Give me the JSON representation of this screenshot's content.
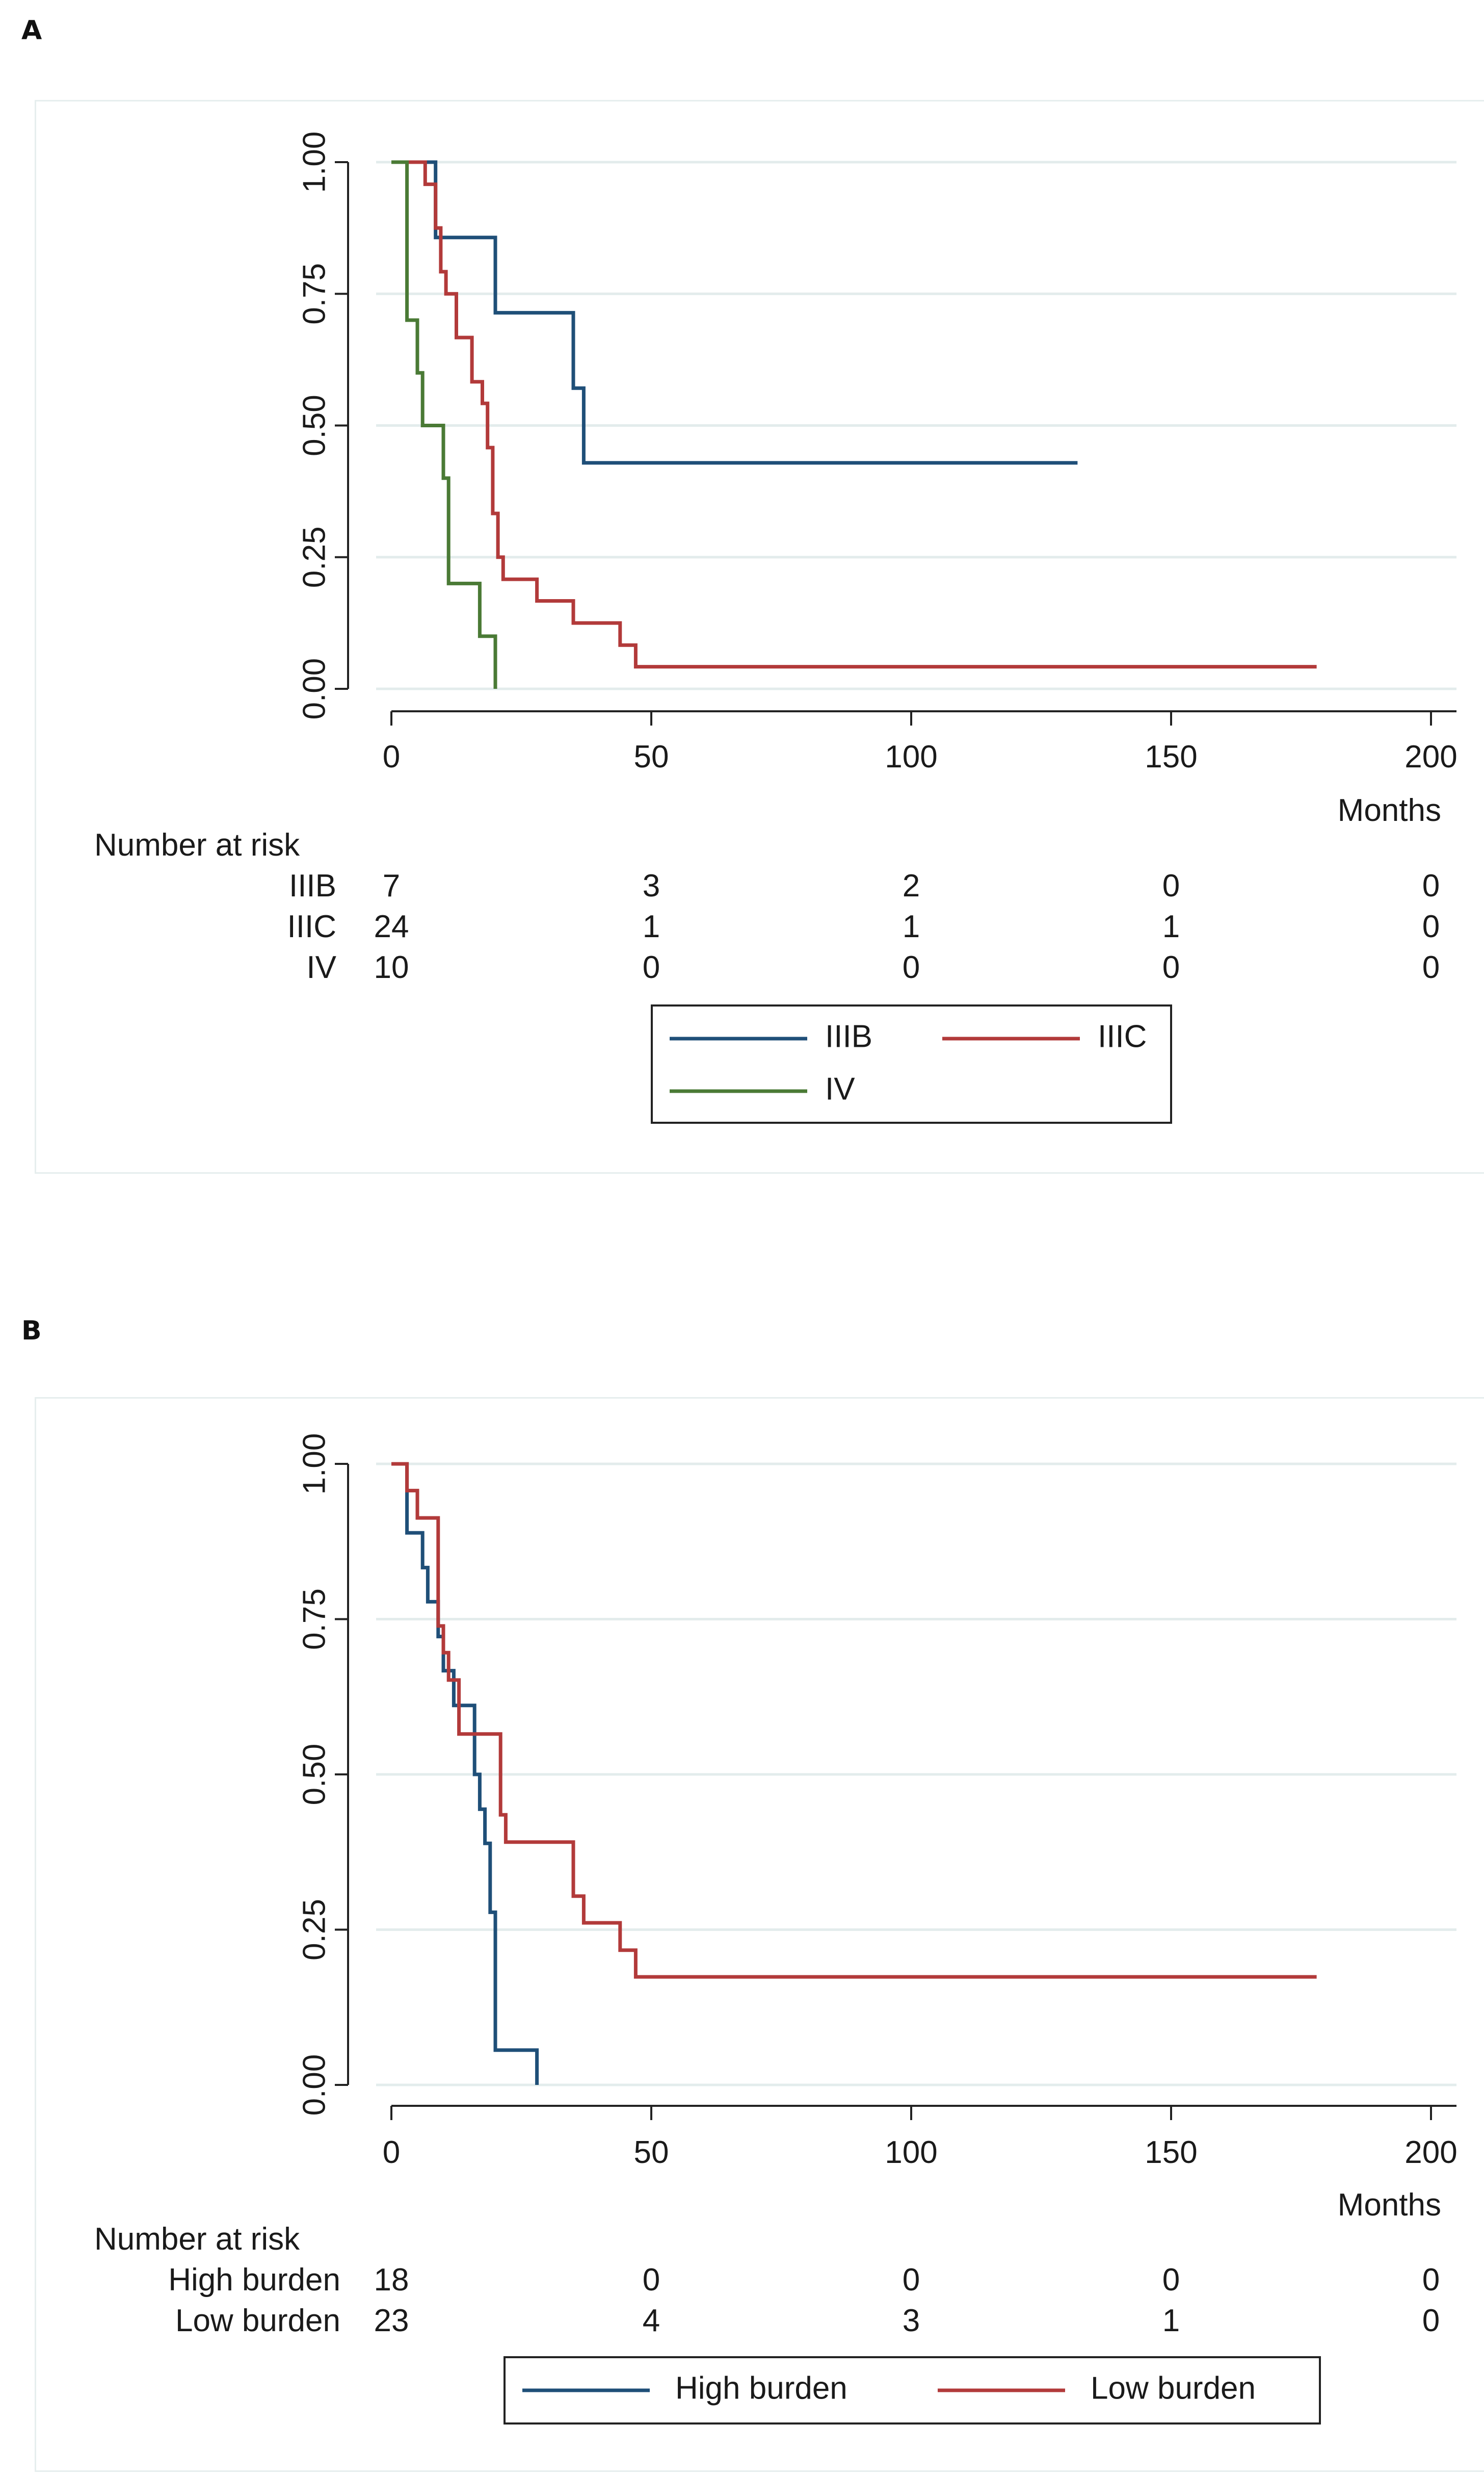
{
  "chart_data": [
    {
      "panel_label": "A",
      "type": "line",
      "step": true,
      "title": "",
      "xlabel": "Months",
      "ylabel": "",
      "xlim": [
        0,
        200
      ],
      "ylim": [
        0,
        1
      ],
      "x_ticks": [
        "0",
        "50",
        "100",
        "150",
        "200"
      ],
      "y_ticks": [
        "0.00",
        "0.25",
        "0.50",
        "0.75",
        "1.00"
      ],
      "grid": true,
      "risk_table": {
        "title": "Number at risk",
        "rows": [
          {
            "label": "IIIB",
            "values": [
              "7",
              "3",
              "2",
              "0",
              "0"
            ]
          },
          {
            "label": "IIIC",
            "values": [
              "24",
              "1",
              "1",
              "1",
              "0"
            ]
          },
          {
            "label": "IV",
            "values": [
              "10",
              "0",
              "0",
              "0",
              "0"
            ]
          }
        ]
      },
      "legend": {
        "placement": "bottom-center",
        "columns": 2
      },
      "series": [
        {
          "name": "IIIB",
          "color": "#1f4f78",
          "points": [
            [
              0,
              1
            ],
            [
              8.5,
              1
            ],
            [
              8.5,
              0.857
            ],
            [
              20,
              0.857
            ],
            [
              20,
              0.714
            ],
            [
              35,
              0.714
            ],
            [
              35,
              0.571
            ],
            [
              37,
              0.571
            ],
            [
              37,
              0.429
            ],
            [
              132,
              0.429
            ]
          ]
        },
        {
          "name": "IIIC",
          "color": "#b23a3a",
          "points": [
            [
              0,
              1
            ],
            [
              6.5,
              1
            ],
            [
              6.5,
              0.958
            ],
            [
              8.5,
              0.958
            ],
            [
              8.5,
              0.875
            ],
            [
              9.5,
              0.875
            ],
            [
              9.5,
              0.792
            ],
            [
              10.5,
              0.792
            ],
            [
              10.5,
              0.75
            ],
            [
              12.5,
              0.75
            ],
            [
              12.5,
              0.667
            ],
            [
              15.5,
              0.667
            ],
            [
              15.5,
              0.583
            ],
            [
              17.5,
              0.583
            ],
            [
              17.5,
              0.542
            ],
            [
              18.5,
              0.542
            ],
            [
              18.5,
              0.458
            ],
            [
              19.5,
              0.458
            ],
            [
              19.5,
              0.333
            ],
            [
              20.5,
              0.333
            ],
            [
              20.5,
              0.25
            ],
            [
              21.5,
              0.25
            ],
            [
              21.5,
              0.208
            ],
            [
              28,
              0.208
            ],
            [
              28,
              0.167
            ],
            [
              35,
              0.167
            ],
            [
              35,
              0.125
            ],
            [
              44,
              0.125
            ],
            [
              44,
              0.083
            ],
            [
              47,
              0.083
            ],
            [
              47,
              0.042
            ],
            [
              178,
              0.042
            ]
          ]
        },
        {
          "name": "IV",
          "color": "#4a7a35",
          "points": [
            [
              0,
              1
            ],
            [
              3,
              1
            ],
            [
              3,
              0.7
            ],
            [
              5,
              0.7
            ],
            [
              5,
              0.6
            ],
            [
              6,
              0.6
            ],
            [
              6,
              0.5
            ],
            [
              10,
              0.5
            ],
            [
              10,
              0.4
            ],
            [
              11,
              0.4
            ],
            [
              11,
              0.2
            ],
            [
              17,
              0.2
            ],
            [
              17,
              0.1
            ],
            [
              20,
              0.1
            ],
            [
              20,
              0
            ]
          ]
        }
      ]
    },
    {
      "panel_label": "B",
      "type": "line",
      "step": true,
      "title": "",
      "xlabel": "Months",
      "ylabel": "",
      "xlim": [
        0,
        200
      ],
      "ylim": [
        0,
        1
      ],
      "x_ticks": [
        "0",
        "50",
        "100",
        "150",
        "200"
      ],
      "y_ticks": [
        "0.00",
        "0.25",
        "0.50",
        "0.75",
        "1.00"
      ],
      "grid": true,
      "risk_table": {
        "title": "Number at risk",
        "rows": [
          {
            "label": "High burden",
            "values": [
              "18",
              "0",
              "0",
              "0",
              "0"
            ]
          },
          {
            "label": "Low burden",
            "values": [
              "23",
              "4",
              "3",
              "1",
              "0"
            ]
          }
        ]
      },
      "legend": {
        "placement": "bottom-center",
        "columns": 2
      },
      "series": [
        {
          "name": "High burden",
          "color": "#1f4f78",
          "points": [
            [
              0,
              1
            ],
            [
              3,
              1
            ],
            [
              3,
              0.889
            ],
            [
              6,
              0.889
            ],
            [
              6,
              0.833
            ],
            [
              7,
              0.833
            ],
            [
              7,
              0.778
            ],
            [
              9,
              0.778
            ],
            [
              9,
              0.722
            ],
            [
              10,
              0.722
            ],
            [
              10,
              0.667
            ],
            [
              12,
              0.667
            ],
            [
              12,
              0.611
            ],
            [
              16,
              0.611
            ],
            [
              16,
              0.5
            ],
            [
              17,
              0.5
            ],
            [
              17,
              0.444
            ],
            [
              18,
              0.444
            ],
            [
              18,
              0.389
            ],
            [
              19,
              0.389
            ],
            [
              19,
              0.278
            ],
            [
              20,
              0.278
            ],
            [
              20,
              0.056
            ],
            [
              28,
              0.056
            ],
            [
              28,
              0
            ]
          ]
        },
        {
          "name": "Low burden",
          "color": "#b23a3a",
          "points": [
            [
              0,
              1
            ],
            [
              3,
              1
            ],
            [
              3,
              0.957
            ],
            [
              5,
              0.957
            ],
            [
              5,
              0.913
            ],
            [
              9,
              0.913
            ],
            [
              9,
              0.739
            ],
            [
              10,
              0.739
            ],
            [
              10,
              0.696
            ],
            [
              11,
              0.696
            ],
            [
              11,
              0.652
            ],
            [
              13,
              0.652
            ],
            [
              13,
              0.565
            ],
            [
              21,
              0.565
            ],
            [
              21,
              0.435
            ],
            [
              22,
              0.435
            ],
            [
              22,
              0.391
            ],
            [
              35,
              0.391
            ],
            [
              35,
              0.304
            ],
            [
              37,
              0.304
            ],
            [
              37,
              0.261
            ],
            [
              44,
              0.261
            ],
            [
              44,
              0.217
            ],
            [
              47,
              0.217
            ],
            [
              47,
              0.174
            ],
            [
              178,
              0.174
            ]
          ]
        }
      ]
    }
  ]
}
